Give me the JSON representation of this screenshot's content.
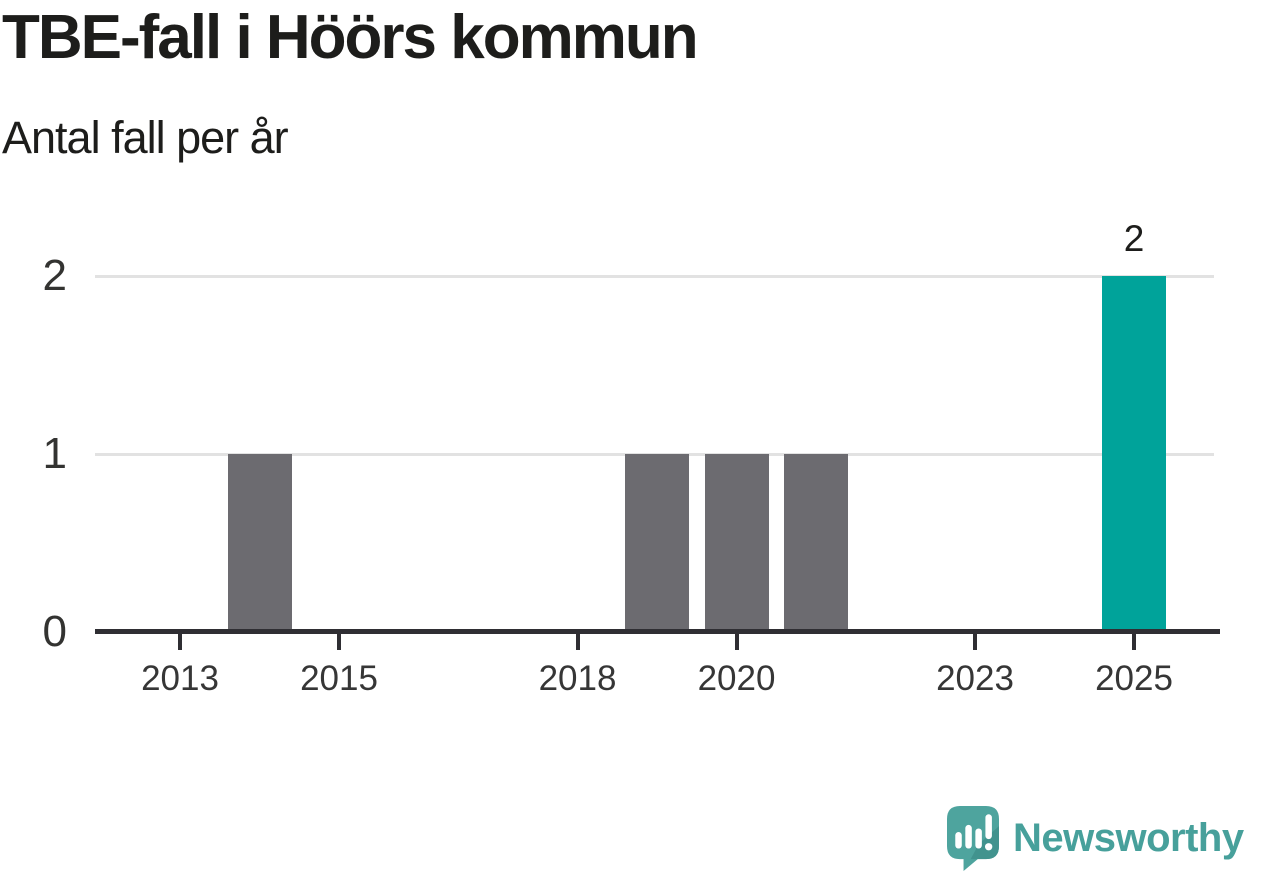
{
  "header": {
    "title": "TBE-fall i Höörs kommun",
    "subtitle": "Antal fall per år"
  },
  "chart_data": {
    "type": "bar",
    "title": "TBE-fall i Höörs kommun",
    "subtitle": "Antal fall per år",
    "categories": [
      2012,
      2013,
      2014,
      2015,
      2016,
      2017,
      2018,
      2019,
      2020,
      2021,
      2022,
      2023,
      2024,
      2025
    ],
    "values": [
      0,
      0,
      1,
      0,
      0,
      0,
      0,
      1,
      1,
      1,
      0,
      0,
      0,
      2
    ],
    "highlight_year": 2025,
    "bar_labels": [
      {
        "year": 2025,
        "value": 2,
        "text": "2"
      }
    ],
    "x_ticks": [
      {
        "year": 2013,
        "label": "2013"
      },
      {
        "year": 2015,
        "label": "2015"
      },
      {
        "year": 2018,
        "label": "2018"
      },
      {
        "year": 2020,
        "label": "2020"
      },
      {
        "year": 2023,
        "label": "2023"
      },
      {
        "year": 2025,
        "label": "2025"
      }
    ],
    "y_ticks": [
      {
        "value": 0,
        "label": "0"
      },
      {
        "value": 1,
        "label": "1"
      },
      {
        "value": 2,
        "label": "2"
      }
    ],
    "ylim": [
      0,
      2
    ],
    "xlabel": "",
    "ylabel": "",
    "grid": "horizontal-only",
    "legend": "none",
    "colors": {
      "bar_default": "#6c6b70",
      "bar_highlight": "#00a39a",
      "axis": "#2f2e33",
      "gridline": "#e2e2e2",
      "background": "#ffffff"
    }
  },
  "footer": {
    "brand": "Newsworthy",
    "brand_color": "#47a09b",
    "logo_icon": "newsworthy-speech-bubble-bar-chart-icon"
  }
}
